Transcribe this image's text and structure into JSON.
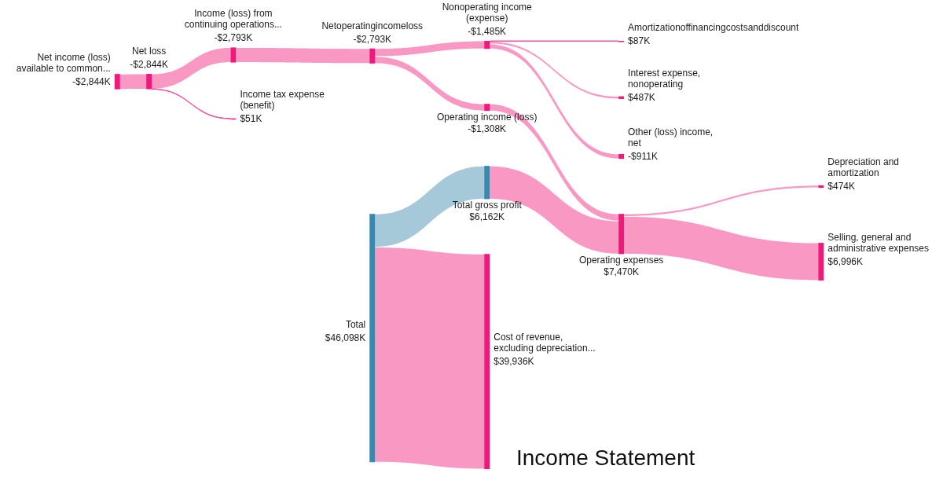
{
  "chart_data": {
    "type": "other",
    "title": "Income Statement",
    "categories": [
      "Net income (loss)\navailable to common...",
      "Net loss",
      "Income (loss) from\ncontinuing operations...",
      "Income tax expense\n(benefit)",
      "Netoperatingincomeloss",
      "Total",
      "Nonoperating income\n(expense)",
      "Operating income (loss)",
      "Total gross profit",
      "Cost of revenue,\nexcluding depreciation...",
      "Amortizationoffinancingcostsanddiscount",
      "Interest expense,\nnonoperating",
      "Other (loss) income,\nnet",
      "Operating expenses",
      "Depreciation and\namortization",
      "Selling, general and\nadministrative expenses"
    ],
    "values": [
      -2844,
      -2844,
      -2793,
      51,
      -2793,
      46098,
      -1485,
      -1308,
      6162,
      39936,
      87,
      487,
      -911,
      7470,
      474,
      6996
    ],
    "value_labels": [
      "-$2,844K",
      "-$2,844K",
      "-$2,793K",
      "$51K",
      "-$2,793K",
      "$46,098K",
      "-$1,485K",
      "-$1,308K",
      "$6,162K",
      "$39,936K",
      "$87K",
      "$487K",
      "-$911K",
      "$7,470K",
      "$474K",
      "$6,996K"
    ],
    "colors": [
      "#f0197a",
      "#f0197a",
      "#f0197a",
      "#f0197a",
      "#f0197a",
      "#3a87ad",
      "#f0197a",
      "#f0197a",
      "#3a87ad",
      "#f0197a",
      "#f0197a",
      "#f0197a",
      "#f0197a",
      "#f0197a",
      "#f0197a",
      "#f0197a"
    ]
  }
}
